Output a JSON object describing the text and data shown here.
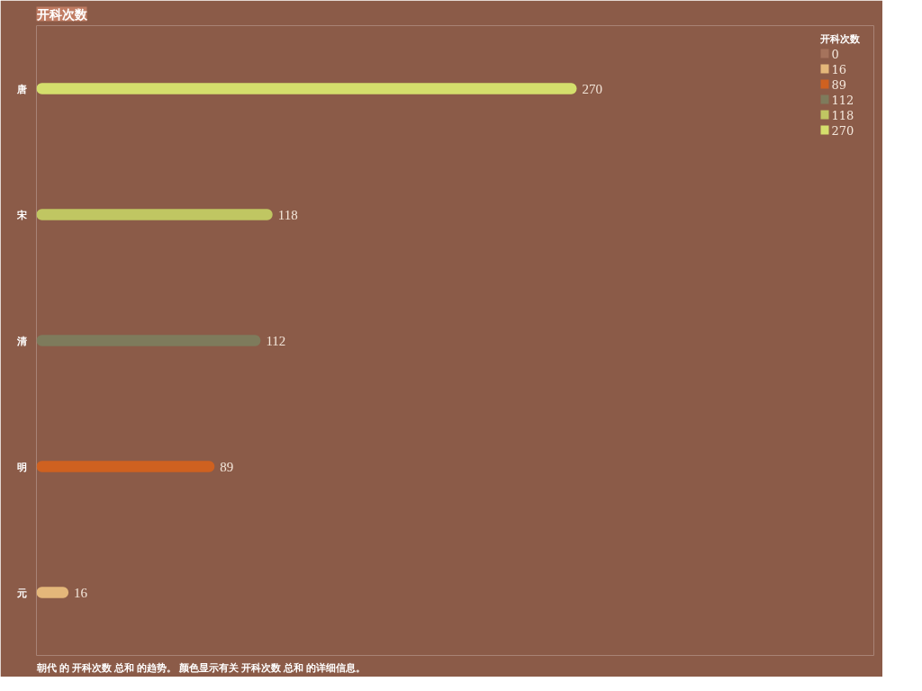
{
  "chart_data": {
    "type": "bar",
    "orientation": "horizontal",
    "title": "开科次数",
    "categories": [
      "唐",
      "宋",
      "清",
      "明",
      "元"
    ],
    "series": [
      {
        "name": "0",
        "color": "#a5735c",
        "values": [
          null,
          null,
          null,
          null,
          null
        ]
      },
      {
        "name": "16",
        "color": "#e4b77a",
        "values": [
          null,
          null,
          null,
          null,
          16
        ]
      },
      {
        "name": "89",
        "color": "#cf6120",
        "values": [
          null,
          null,
          null,
          89,
          null
        ]
      },
      {
        "name": "112",
        "color": "#7e7b5c",
        "values": [
          null,
          null,
          112,
          null,
          null
        ]
      },
      {
        "name": "118",
        "color": "#c0c662",
        "values": [
          null,
          118,
          null,
          null,
          null
        ]
      },
      {
        "name": "270",
        "color": "#d4df6c",
        "values": [
          270,
          null,
          null,
          null,
          null
        ]
      }
    ],
    "data_labels": true,
    "legend": "top right",
    "legend_title": "开科次数",
    "annotations": [
      "朝代 的 开科次数 总和 的趋势。  颜色显示有关 开科次数 总和 的详细信息。"
    ]
  }
}
